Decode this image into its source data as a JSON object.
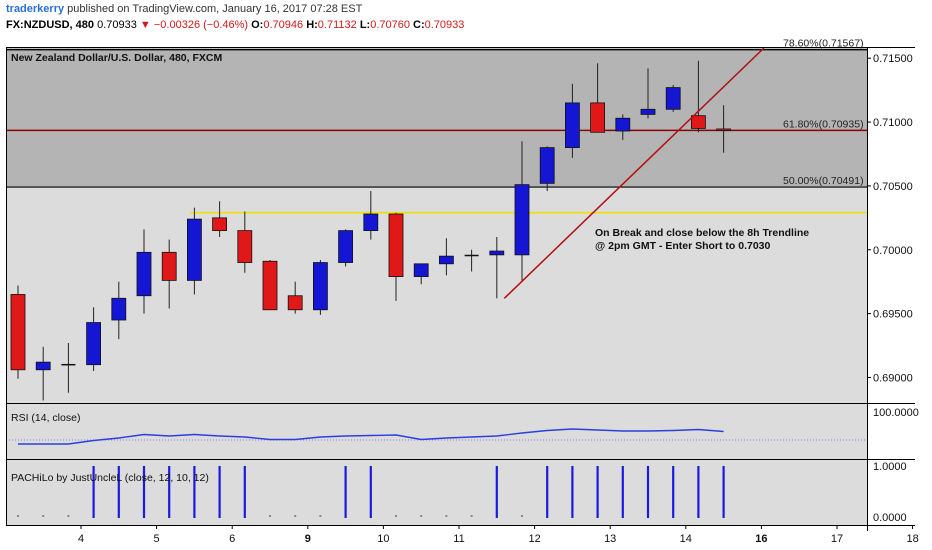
{
  "header": {
    "author": "traderkerry",
    "published": "published on TradingView.com, January 16, 2017 07:28 EST",
    "symbol": "FX:NZDUSD, 480",
    "last": "0.70933",
    "change": "−0.00326 (−0.46%)",
    "o_label": "O:",
    "o": "0.70946",
    "h_label": "H:",
    "h": "0.71132",
    "l_label": "L:",
    "l": "0.70760",
    "c_label": "C:",
    "c": "0.70933"
  },
  "colors": {
    "up": "#1515d4",
    "down": "#e01818",
    "zone": "#b4b4b4",
    "bg": "#dcdcdc",
    "fib_line": "#8b0000",
    "yellow": "#f0e000",
    "trend": "#b01010",
    "rsi": "#2a3fe0"
  },
  "chart_data": [
    {
      "type": "candlestick",
      "title": "New Zealand Dollar/U.S. Dollar, 480, FXCM",
      "ylim": [
        0.688,
        0.7158
      ],
      "yticks": [
        "0.71500",
        "0.71000",
        "0.70500",
        "0.70000",
        "0.69500",
        "0.69000"
      ],
      "x_ticks": [
        "4",
        "5",
        "6",
        "9",
        "10",
        "11",
        "12",
        "13",
        "14",
        "16",
        "17",
        "18"
      ],
      "x_ticks_bold": [
        "9",
        "16"
      ],
      "candles": [
        {
          "o": 0.6965,
          "h": 0.6972,
          "l": 0.6899,
          "c": 0.6906
        },
        {
          "o": 0.6906,
          "h": 0.6924,
          "l": 0.6882,
          "c": 0.6912
        },
        {
          "o": 0.691,
          "h": 0.6927,
          "l": 0.6888,
          "c": 0.691
        },
        {
          "o": 0.691,
          "h": 0.6955,
          "l": 0.6905,
          "c": 0.6943
        },
        {
          "o": 0.6945,
          "h": 0.6975,
          "l": 0.693,
          "c": 0.6962
        },
        {
          "o": 0.6964,
          "h": 0.7016,
          "l": 0.695,
          "c": 0.6998
        },
        {
          "o": 0.6998,
          "h": 0.7008,
          "l": 0.6954,
          "c": 0.6976
        },
        {
          "o": 0.6976,
          "h": 0.7033,
          "l": 0.6965,
          "c": 0.7024
        },
        {
          "o": 0.7025,
          "h": 0.7038,
          "l": 0.701,
          "c": 0.7015
        },
        {
          "o": 0.7015,
          "h": 0.703,
          "l": 0.6982,
          "c": 0.699
        },
        {
          "o": 0.6991,
          "h": 0.6992,
          "l": 0.6954,
          "c": 0.6953
        },
        {
          "o": 0.6964,
          "h": 0.6975,
          "l": 0.695,
          "c": 0.6953
        },
        {
          "o": 0.6953,
          "h": 0.6992,
          "l": 0.6949,
          "c": 0.699
        },
        {
          "o": 0.699,
          "h": 0.7016,
          "l": 0.6987,
          "c": 0.7015
        },
        {
          "o": 0.7015,
          "h": 0.7046,
          "l": 0.7008,
          "c": 0.7028
        },
        {
          "o": 0.7028,
          "h": 0.7029,
          "l": 0.696,
          "c": 0.6979
        },
        {
          "o": 0.6979,
          "h": 0.6987,
          "l": 0.6973,
          "c": 0.6989
        },
        {
          "o": 0.6989,
          "h": 0.7009,
          "l": 0.698,
          "c": 0.6995
        },
        {
          "o": 0.6995,
          "h": 0.7,
          "l": 0.6983,
          "c": 0.6996
        },
        {
          "o": 0.6996,
          "h": 0.701,
          "l": 0.6962,
          "c": 0.6999
        },
        {
          "o": 0.6996,
          "h": 0.7085,
          "l": 0.6975,
          "c": 0.7051
        },
        {
          "o": 0.7052,
          "h": 0.7081,
          "l": 0.7046,
          "c": 0.708
        },
        {
          "o": 0.708,
          "h": 0.713,
          "l": 0.7072,
          "c": 0.7115
        },
        {
          "o": 0.7115,
          "h": 0.7146,
          "l": 0.7093,
          "c": 0.7092
        },
        {
          "o": 0.7093,
          "h": 0.7106,
          "l": 0.7086,
          "c": 0.7103
        },
        {
          "o": 0.7106,
          "h": 0.7142,
          "l": 0.7103,
          "c": 0.711
        },
        {
          "o": 0.711,
          "h": 0.7129,
          "l": 0.7108,
          "c": 0.7127
        },
        {
          "o": 0.7105,
          "h": 0.7148,
          "l": 0.7092,
          "c": 0.7095
        },
        {
          "o": 0.70946,
          "h": 0.71132,
          "l": 0.7076,
          "c": 0.70933
        }
      ],
      "fib_levels": [
        {
          "label": "78.60%(0.71567)",
          "value": 0.71567
        },
        {
          "label": "61.80%(0.70935)",
          "value": 0.70935
        },
        {
          "label": "50.00%(0.70491)",
          "value": 0.70491
        }
      ],
      "horizontal_line": 0.7029,
      "trendline": {
        "from": [
          19.3,
          0.6962
        ],
        "to": [
          29.6,
          0.7158
        ]
      },
      "annotation": [
        "On Break and close below the 8h Trendline",
        "@ 2pm GMT - Enter Short to 0.7030"
      ]
    },
    {
      "type": "line",
      "title": "RSI (14, close)",
      "ytick": "100.0000",
      "ylim": [
        0,
        100
      ],
      "values": [
        43,
        43,
        43,
        50,
        55,
        62,
        59,
        62,
        59,
        57,
        52,
        52,
        57,
        59,
        60,
        61,
        52,
        55,
        57,
        59,
        65,
        70,
        73,
        71,
        69,
        69,
        70,
        72,
        68
      ]
    },
    {
      "type": "bar",
      "title": "PACHiLo by JustUncleL (close, 12, 10, 12)",
      "yticks": [
        "1.0000",
        "0.0000"
      ],
      "ylim": [
        0,
        1
      ],
      "values": [
        0,
        0,
        0,
        1,
        1,
        1,
        1,
        1,
        1,
        1,
        0,
        0,
        0,
        1,
        1,
        0,
        0,
        0,
        0,
        1,
        0,
        1,
        1,
        1,
        1,
        1,
        1,
        1,
        1
      ]
    }
  ]
}
